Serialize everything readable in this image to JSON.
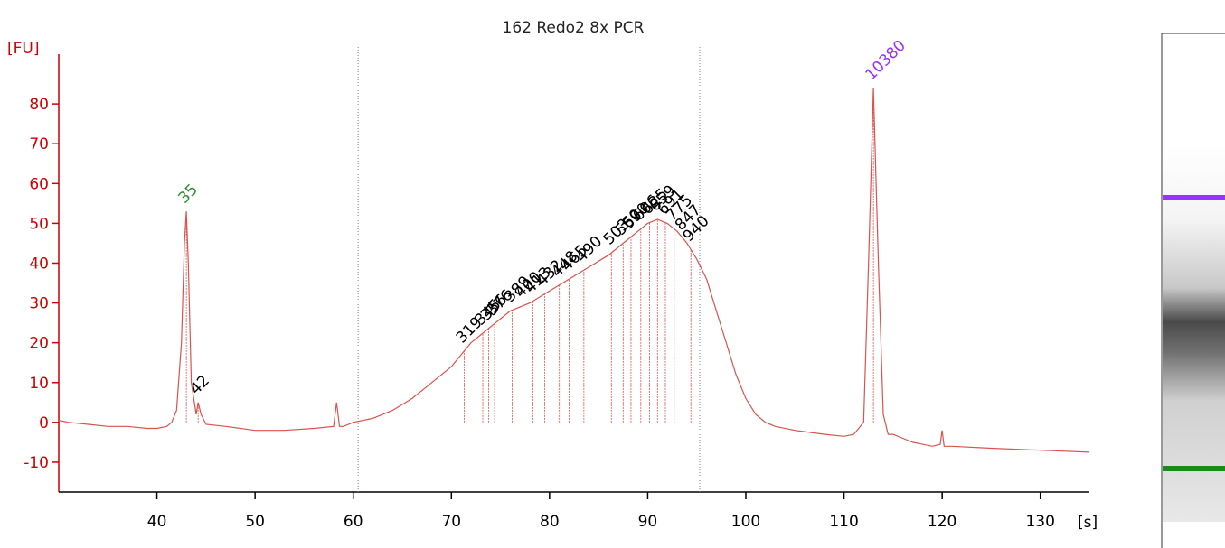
{
  "chart_data": {
    "type": "line",
    "title": "162 Redo2 8x PCR",
    "ylabel": "[FU]",
    "xlabel": "[s]",
    "xlim": [
      30,
      135
    ],
    "ylim": [
      -17.5,
      92.5
    ],
    "xticks": [
      40,
      50,
      60,
      70,
      80,
      90,
      100,
      110,
      120,
      130
    ],
    "yticks": [
      -10,
      0,
      10,
      20,
      30,
      40,
      50,
      60,
      70,
      80
    ],
    "axis_color": "#cc0000",
    "trace": {
      "color": "#d9534f",
      "x": [
        30,
        31,
        33,
        35,
        37,
        39,
        40,
        41,
        41.5,
        42,
        42.5,
        42.8,
        43,
        43.2,
        43.5,
        44,
        44.2,
        44.5,
        45,
        47,
        50,
        53,
        56,
        58,
        58.3,
        58.6,
        59,
        60,
        62,
        64,
        66,
        68,
        70,
        71,
        72,
        74,
        76,
        78,
        80,
        82,
        84,
        86,
        88,
        89,
        90,
        91,
        92,
        93,
        94,
        95,
        96,
        97,
        98,
        99,
        100,
        101,
        102,
        103,
        105,
        108,
        110,
        111,
        112,
        112.5,
        113,
        113.5,
        114,
        114.5,
        115,
        116,
        117,
        119,
        119.8,
        120,
        120.2,
        121,
        125,
        130,
        135
      ],
      "y": [
        0.5,
        0,
        -0.5,
        -1,
        -1,
        -1.5,
        -1.5,
        -1,
        0,
        3,
        20,
        45,
        53,
        40,
        10,
        2,
        5,
        2,
        -0.5,
        -1,
        -2,
        -2,
        -1.5,
        -1,
        5,
        -1,
        -1,
        0,
        1,
        3,
        6,
        10,
        14,
        17,
        20,
        24,
        28,
        30,
        33,
        36,
        39,
        42,
        46,
        48,
        50,
        51,
        50,
        48,
        45,
        41,
        36,
        28,
        20,
        12,
        6,
        2,
        0,
        -1,
        -2,
        -3,
        -3.5,
        -3,
        0,
        40,
        84,
        40,
        2,
        -3,
        -3,
        -4,
        -5,
        -6,
        -5.5,
        -2,
        -6,
        -6,
        -6.5,
        -7,
        -7.5
      ]
    },
    "region": [
      60.5,
      95.3
    ],
    "peaks": [
      {
        "x": 43,
        "size": 35,
        "color": "#2e8b2e"
      },
      {
        "x": 44.2,
        "size": 42,
        "color": "#000000"
      },
      {
        "x": 71.3,
        "size": 319,
        "color": "#000000"
      },
      {
        "x": 73.2,
        "size": 345,
        "color": "#000000"
      },
      {
        "x": 73.8,
        "size": 356,
        "color": "#000000"
      },
      {
        "x": 74.4,
        "size": 376,
        "color": "#000000"
      },
      {
        "x": 76.2,
        "size": 389,
        "color": "#000000"
      },
      {
        "x": 77.3,
        "size": 400,
        "color": "#000000"
      },
      {
        "x": 78.3,
        "size": 413,
        "color": "#000000"
      },
      {
        "x": 79.5,
        "size": 432,
        "color": "#000000"
      },
      {
        "x": 81.0,
        "size": 448,
        "color": "#000000"
      },
      {
        "x": 82.0,
        "size": 465,
        "color": "#000000"
      },
      {
        "x": 83.5,
        "size": 490,
        "color": "#000000"
      },
      {
        "x": 86.3,
        "size": 503,
        "color": "#000000"
      },
      {
        "x": 87.5,
        "size": 560,
        "color": "#000000"
      },
      {
        "x": 88.3,
        "size": 590,
        "color": "#000000"
      },
      {
        "x": 89.3,
        "size": 606,
        "color": "#000000"
      },
      {
        "x": 90.2,
        "size": 625,
        "color": "#000000"
      },
      {
        "x": 91.0,
        "size": 659,
        "color": "#000000"
      },
      {
        "x": 91.8,
        "size": 691,
        "color": "#000000"
      },
      {
        "x": 92.7,
        "size": 775,
        "color": "#000000"
      },
      {
        "x": 93.6,
        "size": 847,
        "color": "#000000"
      },
      {
        "x": 94.4,
        "size": 940,
        "color": "#000000"
      },
      {
        "x": 113,
        "size": 10380,
        "color": "#9b30ff"
      }
    ]
  }
}
